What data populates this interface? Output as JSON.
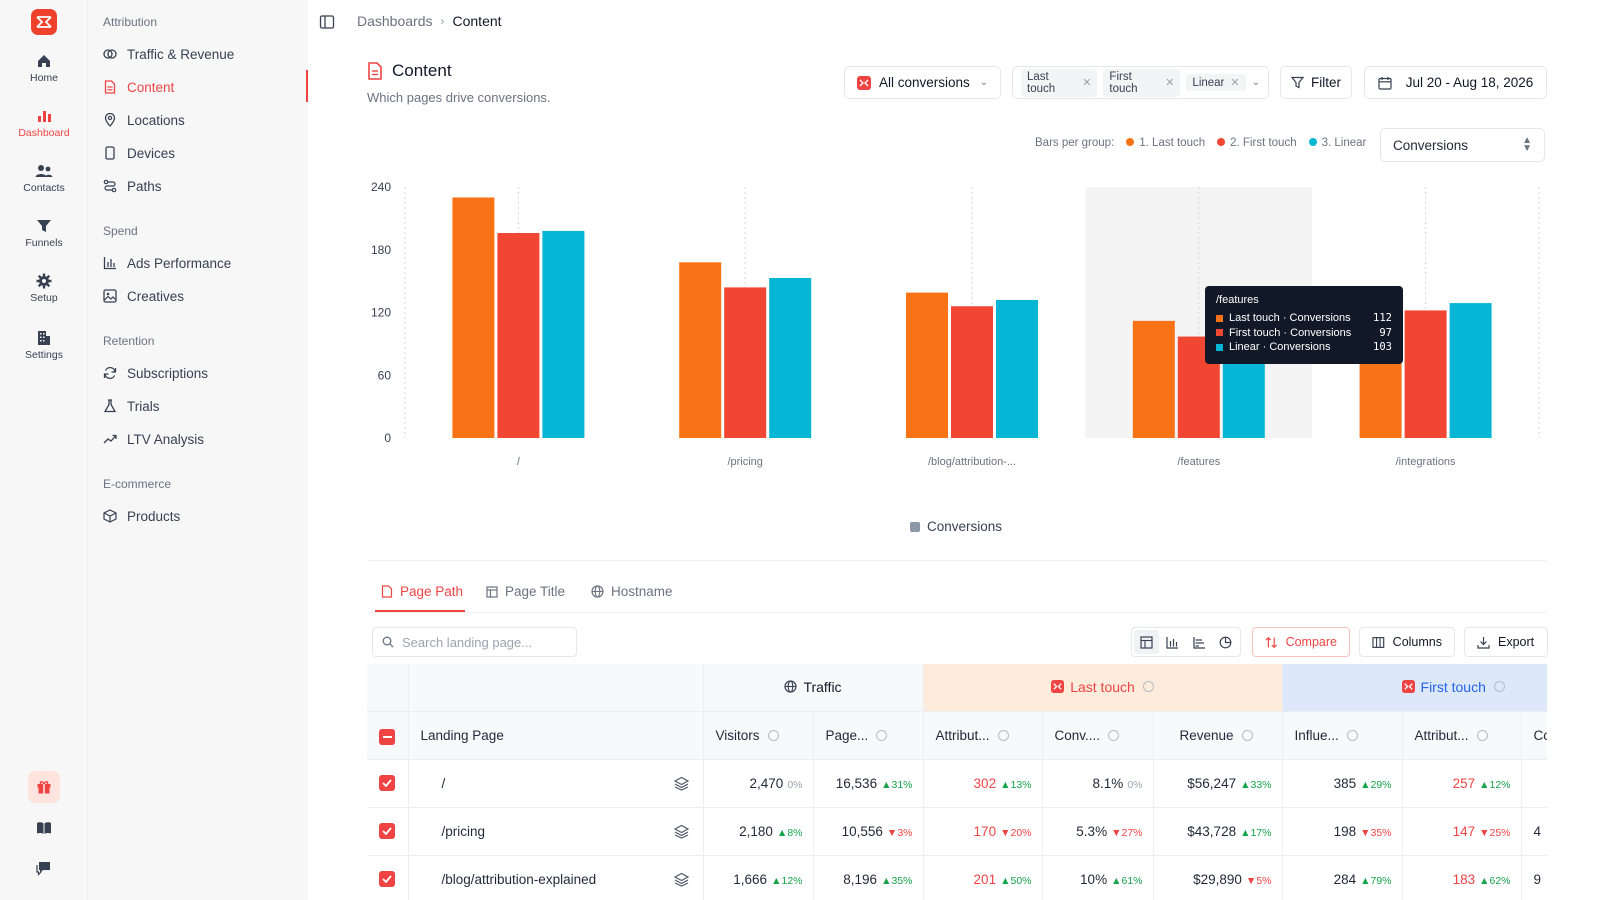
{
  "rail": {
    "items": [
      {
        "label": "Home",
        "icon": "home-icon"
      },
      {
        "label": "Dashboard",
        "icon": "bar-chart-icon",
        "active": true
      },
      {
        "label": "Contacts",
        "icon": "users-icon"
      },
      {
        "label": "Funnels",
        "icon": "funnel-icon"
      },
      {
        "label": "Setup",
        "icon": "gear-icon"
      },
      {
        "label": "Settings",
        "icon": "building-icon"
      }
    ],
    "bottom": [
      "gift-icon",
      "book-icon",
      "chat-icon"
    ]
  },
  "sidebar": {
    "sections": [
      {
        "title": "Attribution",
        "items": [
          {
            "label": "Traffic & Revenue",
            "icon": "coins-icon"
          },
          {
            "label": "Content",
            "icon": "document-icon",
            "active": true
          },
          {
            "label": "Locations",
            "icon": "pin-icon"
          },
          {
            "label": "Devices",
            "icon": "phone-icon"
          },
          {
            "label": "Paths",
            "icon": "route-icon"
          }
        ]
      },
      {
        "title": "Spend",
        "items": [
          {
            "label": "Ads Performance",
            "icon": "bar-chart-icon"
          },
          {
            "label": "Creatives",
            "icon": "image-icon"
          }
        ]
      },
      {
        "title": "Retention",
        "items": [
          {
            "label": "Subscriptions",
            "icon": "refresh-icon"
          },
          {
            "label": "Trials",
            "icon": "flask-icon"
          },
          {
            "label": "LTV Analysis",
            "icon": "trend-icon"
          }
        ]
      },
      {
        "title": "E-commerce",
        "items": [
          {
            "label": "Products",
            "icon": "box-icon"
          }
        ]
      }
    ]
  },
  "breadcrumb": {
    "parent": "Dashboards",
    "current": "Content"
  },
  "page": {
    "title": "Content",
    "subtitle": "Which pages drive conversions."
  },
  "controls": {
    "conversions_select": "All conversions",
    "models": [
      "Last touch",
      "First touch",
      "Linear"
    ],
    "filter_label": "Filter",
    "date_range": "Jul 20 - Aug 18, 2026",
    "bars_per_group_label": "Bars per group:",
    "bars_per_group": [
      "1. Last touch",
      "2. First touch",
      "3. Linear"
    ],
    "metric_select": "Conversions"
  },
  "colors": {
    "last_touch": "#f97316",
    "first_touch": "#f04632",
    "linear": "#06b6d4",
    "accent": "#ef4444"
  },
  "chart_data": {
    "type": "bar",
    "categories": [
      "/",
      "/pricing",
      "/blog/attribution-...",
      "/features",
      "/integrations"
    ],
    "series": [
      {
        "name": "Last touch",
        "values": [
          230,
          168,
          139,
          112,
          114
        ]
      },
      {
        "name": "First touch",
        "values": [
          196,
          144,
          126,
          97,
          122
        ]
      },
      {
        "name": "Linear",
        "values": [
          198,
          153,
          132,
          103,
          129
        ]
      }
    ],
    "yticks": [
      0,
      60,
      120,
      180,
      240
    ],
    "ylim": [
      0,
      240
    ],
    "legend": "Conversions",
    "highlighted_category": "/features",
    "tooltip": {
      "title": "/features",
      "rows": [
        {
          "label": "Last touch · Conversions",
          "value": "112"
        },
        {
          "label": "First touch · Conversions",
          "value": "97"
        },
        {
          "label": "Linear · Conversions",
          "value": "103"
        }
      ]
    }
  },
  "tabs": [
    "Page Path",
    "Page Title",
    "Hostname"
  ],
  "toolbar": {
    "search_placeholder": "Search landing page...",
    "compare": "Compare",
    "columns": "Columns",
    "export": "Export"
  },
  "table": {
    "groups": {
      "traffic": "Traffic",
      "last_touch": "Last touch",
      "first_touch": "First touch"
    },
    "columns": [
      "Landing Page",
      "Visitors",
      "Page...",
      "Attribut...",
      "Conv....",
      "Revenue",
      "Influe...",
      "Attribut...",
      "Con"
    ],
    "rows": [
      {
        "page": "/",
        "visitors": "2,470",
        "visitors_d": "0%",
        "visitors_dir": "flat",
        "pages": "16,536",
        "pages_d": "31%",
        "pages_dir": "up",
        "attr": "302",
        "attr_d": "13%",
        "attr_dir": "up",
        "conv": "8.1%",
        "conv_d": "0%",
        "conv_dir": "flat",
        "rev": "$56,247",
        "rev_d": "33%",
        "rev_dir": "up",
        "infl": "385",
        "infl_d": "29%",
        "infl_dir": "up",
        "attr2": "257",
        "attr2_d": "12%",
        "attr2_dir": "up",
        "con": ""
      },
      {
        "page": "/pricing",
        "visitors": "2,180",
        "visitors_d": "8%",
        "visitors_dir": "up",
        "pages": "10,556",
        "pages_d": "3%",
        "pages_dir": "down",
        "attr": "170",
        "attr_d": "20%",
        "attr_dir": "down",
        "conv": "5.3%",
        "conv_d": "27%",
        "conv_dir": "down",
        "rev": "$43,728",
        "rev_d": "17%",
        "rev_dir": "up",
        "infl": "198",
        "infl_d": "35%",
        "infl_dir": "down",
        "attr2": "147",
        "attr2_d": "25%",
        "attr2_dir": "down",
        "con": "4"
      },
      {
        "page": "/blog/attribution-explained",
        "visitors": "1,666",
        "visitors_d": "12%",
        "visitors_dir": "up",
        "pages": "8,196",
        "pages_d": "35%",
        "pages_dir": "up",
        "attr": "201",
        "attr_d": "50%",
        "attr_dir": "up",
        "conv": "10%",
        "conv_d": "61%",
        "conv_dir": "up",
        "rev": "$29,890",
        "rev_d": "5%",
        "rev_dir": "down",
        "infl": "284",
        "infl_d": "79%",
        "infl_dir": "up",
        "attr2": "183",
        "attr2_d": "62%",
        "attr2_dir": "up",
        "con": "9"
      }
    ]
  }
}
